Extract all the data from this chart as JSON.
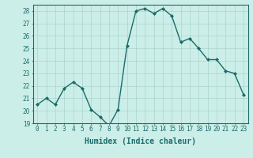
{
  "x": [
    0,
    1,
    2,
    3,
    4,
    5,
    6,
    7,
    8,
    9,
    10,
    11,
    12,
    13,
    14,
    15,
    16,
    17,
    18,
    19,
    20,
    21,
    22,
    23
  ],
  "y": [
    20.5,
    21.0,
    20.5,
    21.8,
    22.3,
    21.8,
    20.1,
    19.5,
    18.8,
    20.1,
    25.2,
    28.0,
    28.2,
    27.8,
    28.2,
    27.6,
    25.5,
    25.8,
    25.0,
    24.1,
    24.1,
    23.2,
    23.0,
    21.3
  ],
  "line_color": "#1a6b6b",
  "marker": "D",
  "marker_size": 2.0,
  "line_width": 1.0,
  "bg_color": "#cceee8",
  "grid_color": "#aad4ce",
  "xlabel": "Humidex (Indice chaleur)",
  "ylim": [
    19,
    28.5
  ],
  "yticks": [
    19,
    20,
    21,
    22,
    23,
    24,
    25,
    26,
    27,
    28
  ],
  "xticks": [
    0,
    1,
    2,
    3,
    4,
    5,
    6,
    7,
    8,
    9,
    10,
    11,
    12,
    13,
    14,
    15,
    16,
    17,
    18,
    19,
    20,
    21,
    22,
    23
  ],
  "tick_label_fontsize": 5.5,
  "xlabel_fontsize": 7.0,
  "spine_color": "#1a6b6b",
  "xlim_left": -0.5,
  "xlim_right": 23.5
}
